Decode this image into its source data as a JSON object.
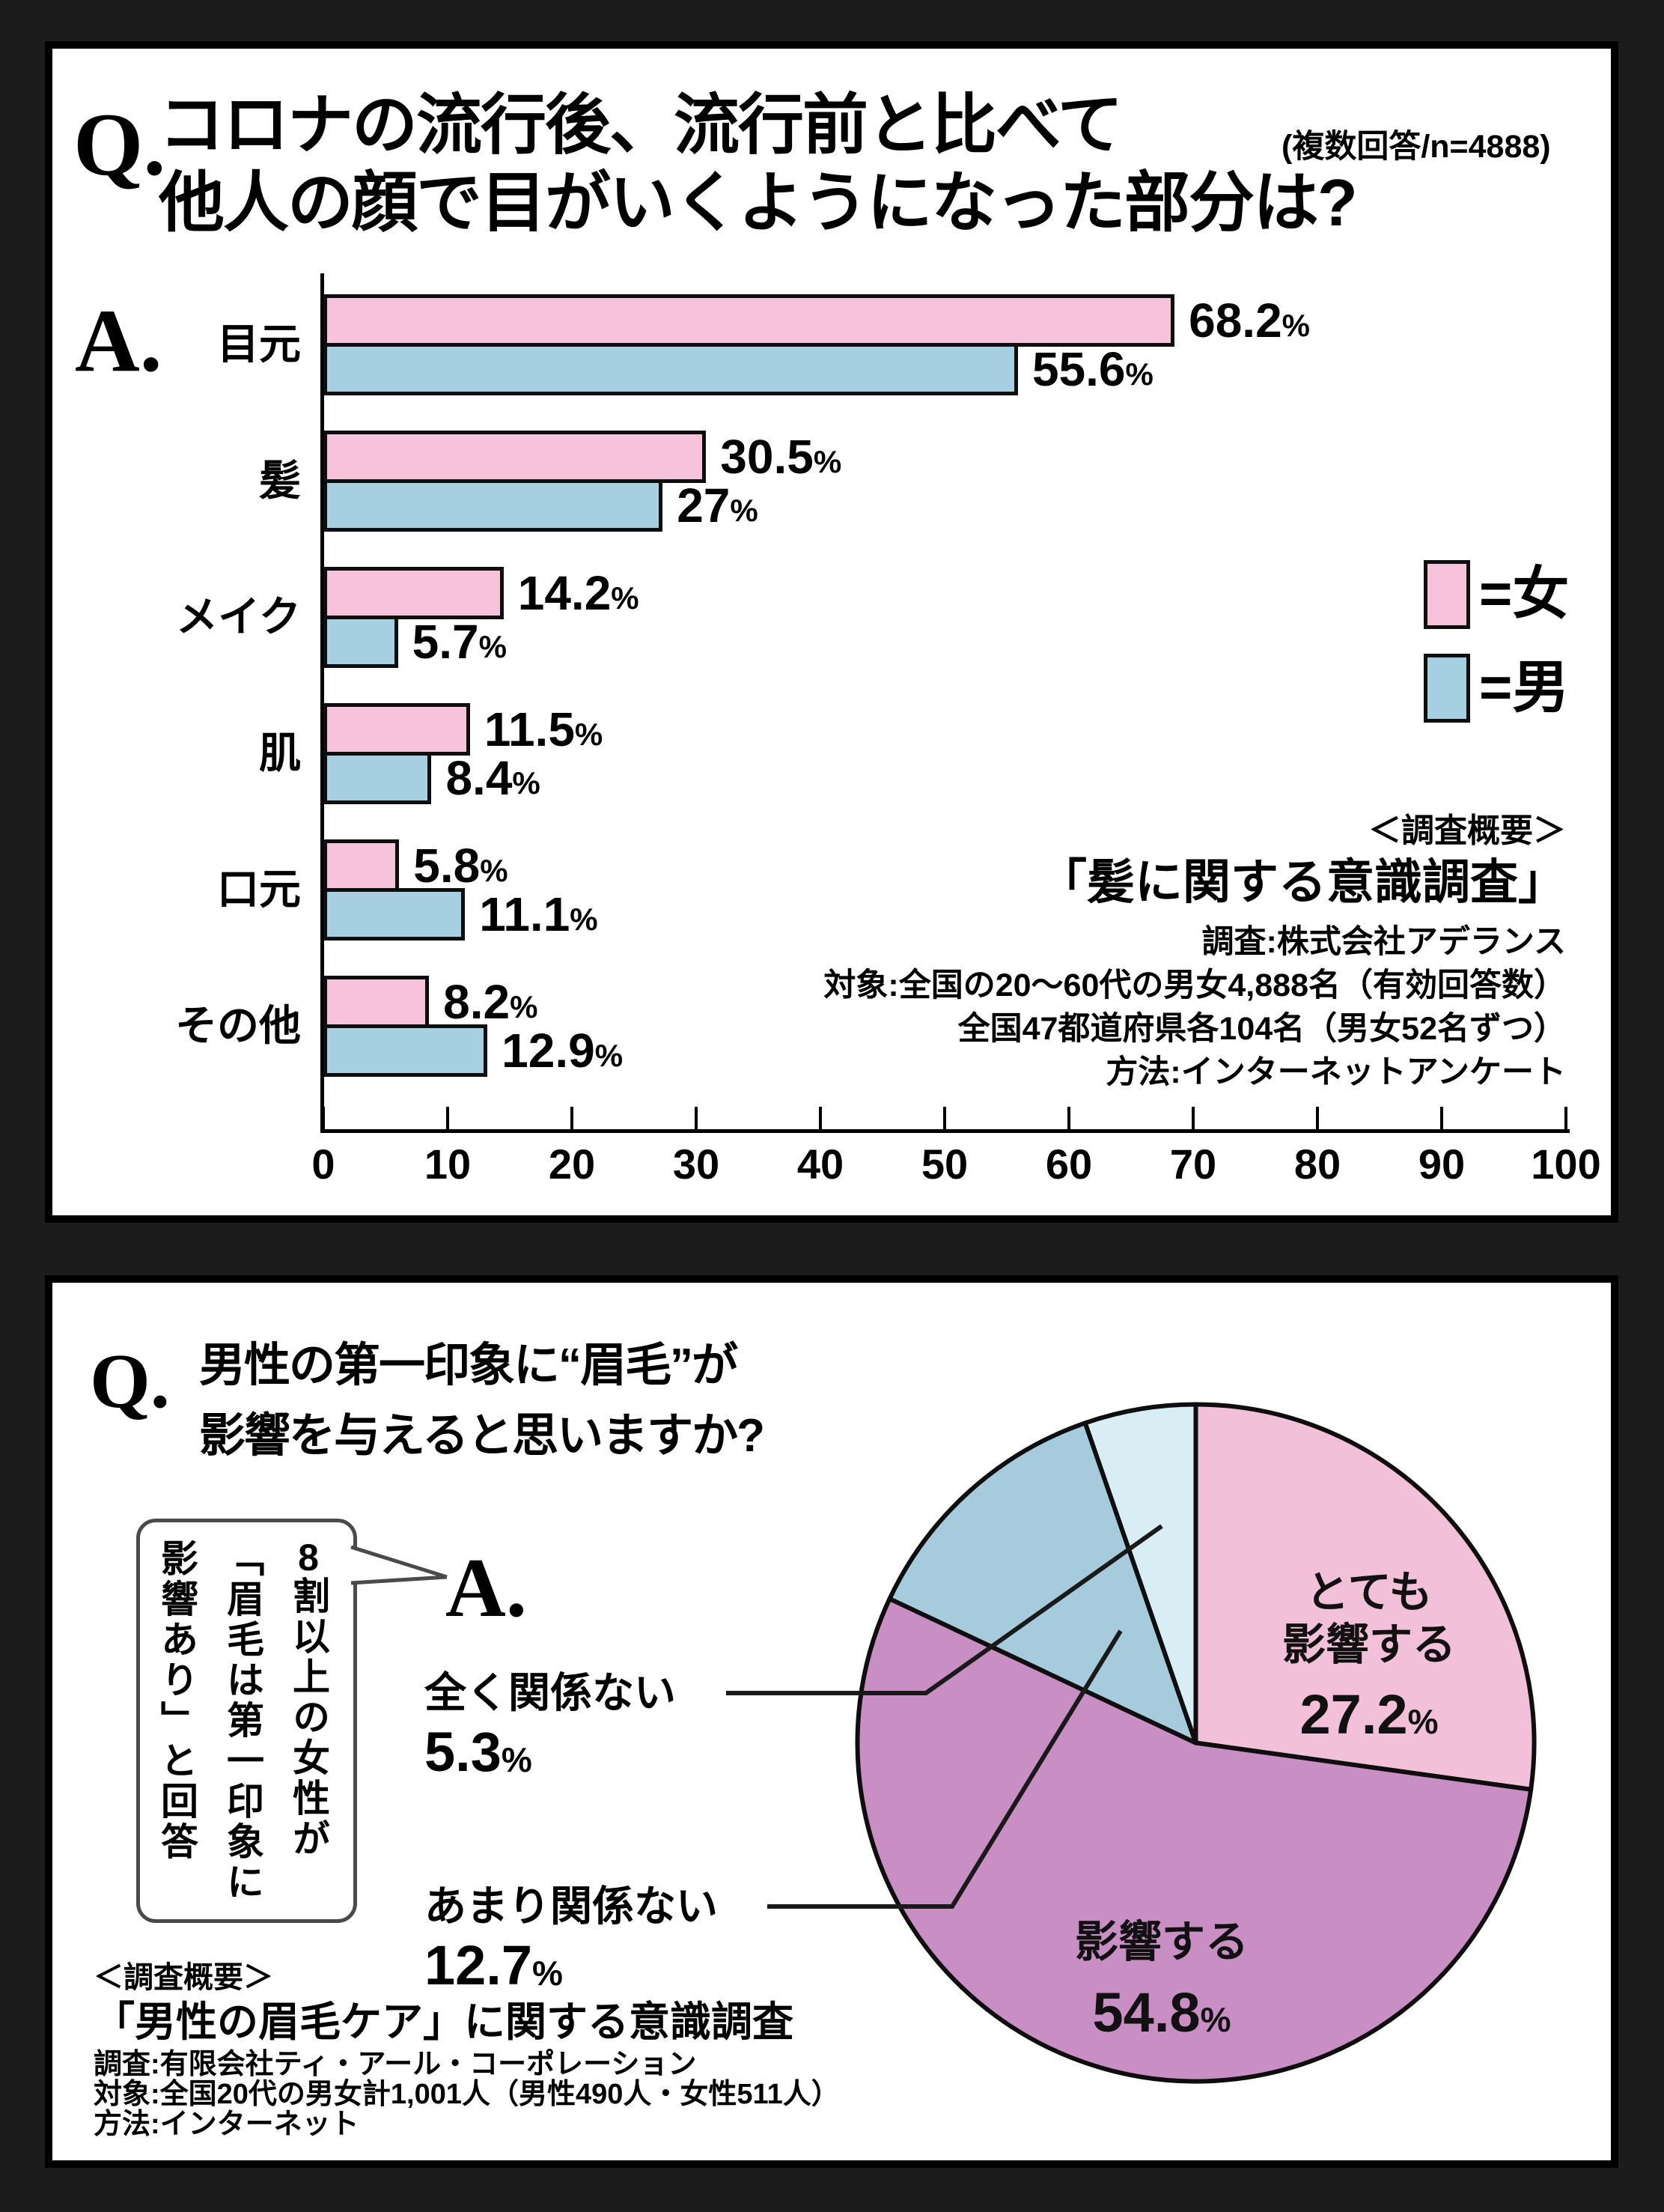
{
  "chart_data": [
    {
      "type": "bar",
      "orientation": "horizontal",
      "title": "コロナの流行後、流行前と比べて他人の顔で目がいくようになった部分は?",
      "note": "(複数回答/n=4888)",
      "categories": [
        "目元",
        "髪",
        "メイク",
        "肌",
        "口元",
        "その他"
      ],
      "series": [
        {
          "name": "女",
          "color": "#f7c3da",
          "values": [
            68.2,
            30.5,
            14.2,
            11.5,
            5.8,
            8.2
          ],
          "labels": [
            "68.2",
            "30.5",
            "14.2",
            "11.5",
            "5.8",
            "8.2"
          ]
        },
        {
          "name": "男",
          "color": "#a6cfe2",
          "values": [
            55.6,
            27,
            5.7,
            8.4,
            11.1,
            12.9
          ],
          "labels": [
            "55.6",
            "27",
            "5.7",
            "8.4",
            "11.1",
            "12.9"
          ]
        }
      ],
      "unit": "%",
      "xlim": [
        0,
        100
      ],
      "x_ticks": [
        0,
        10,
        20,
        30,
        40,
        50,
        60,
        70,
        80,
        90,
        100
      ],
      "grid": false,
      "legend_position": "right"
    },
    {
      "type": "pie",
      "title": "男性の第一印象に“眉毛”が影響を与えると思いますか?",
      "start_angle_deg": 0,
      "direction": "clockwise",
      "unit": "%",
      "slices": [
        {
          "label": "とても影響する",
          "value": 27.2,
          "color": "#f3c0da"
        },
        {
          "label": "影響する",
          "value": 54.8,
          "color": "#c98fc5"
        },
        {
          "label": "あまり関係ない",
          "value": 12.7,
          "color": "#a6cbdd"
        },
        {
          "label": "全く関係ない",
          "value": 5.3,
          "color": "#d9edf5"
        }
      ]
    }
  ],
  "panel1": {
    "q": "Q.",
    "a": "A.",
    "title_line1": "コロナの流行後、流行前と比べて",
    "title_line2": "他人の顔で目がいくようになった部分は?",
    "note": "(複数回答/n=4888)",
    "legend_female": "=女",
    "legend_male": "=男",
    "survey_header": "＜調査概要＞",
    "survey_title": "「髪に関する意識調査」",
    "survey_line1": "調査:株式会社アデランス",
    "survey_line2": "対象:全国の20〜60代の男女4,888名（有効回答数）",
    "survey_line3": "全国47都道府県各104名（男女52名ずつ）",
    "survey_line4": "方法:インターネットアンケート"
  },
  "panel2": {
    "q": "Q.",
    "a": "A.",
    "title_line1": "男性の第一印象に“眉毛”が",
    "title_line2": "影響を与えると思いますか?",
    "bubble_col1_num": "8",
    "bubble_col1_rest": "割以上の女性が",
    "bubble_col2": "「眉毛は第一印象に",
    "bubble_col3": "影響あり」と回答",
    "callout1_label": "全く関係ない",
    "callout1_value": "5.3",
    "callout2_label": "あまり関係ない",
    "callout2_value": "12.7",
    "pie_label1_line1": "とても",
    "pie_label1_line2": "影響する",
    "pie_label1_value": "27.2",
    "pie_label2_line1": "影響する",
    "pie_label2_value": "54.8",
    "unit": "%",
    "survey_header": "＜調査概要＞",
    "survey_title": "「男性の眉毛ケア」に関する意識調査",
    "survey_line1": "調査:有限会社ティ・アール・コーポレーション",
    "survey_line2": "対象:全国20代の男女計1,001人（男性490人・女性511人）",
    "survey_line3": "方法:インターネット"
  }
}
